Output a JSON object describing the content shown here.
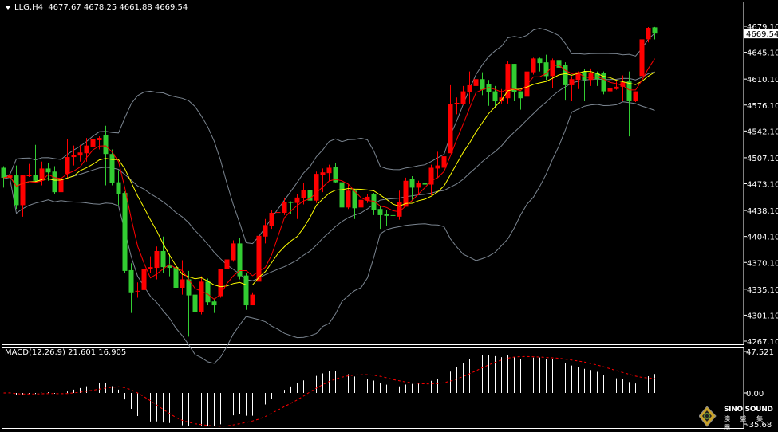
{
  "header": {
    "symbol": "LLG,H4",
    "ohlc": "4677.67 4678.25 4661.88 4669.54"
  },
  "macd": {
    "label": "MACD(12,26,9) 21.601 16.905",
    "ticks": [
      "47.521",
      "0.00",
      "-35.68"
    ],
    "tick_values": [
      47.521,
      0,
      -35.68
    ],
    "params": [
      12,
      26,
      9
    ]
  },
  "logo": {
    "text": "SINO SOUND",
    "cn": "澳 盛 集 團"
  },
  "colors": {
    "up": "#ff0000",
    "down": "#32cd32",
    "ma_fast": "#ff0000",
    "ma_slow": "#ffff00",
    "bands": "#7b8590",
    "macd_hist": "#ffffff",
    "macd_signal": "#ff0000",
    "background": "#000000"
  },
  "chart_data": {
    "type": "candlestick",
    "symbol": "LLG",
    "timeframe": "H4",
    "current_price": "4669.54",
    "ylim": [
      4263,
      4712
    ],
    "price_ticks": [
      "4679.10",
      "4645.10",
      "4610.10",
      "4576.10",
      "4542.10",
      "4507.10",
      "4473.10",
      "4438.10",
      "4404.10",
      "4370.10",
      "4335.10",
      "4301.10",
      "4267.10"
    ],
    "indicators": [
      "SMA 5",
      "SMA 10",
      "Bollinger Bands 20,2",
      "MACD 12,26,9"
    ],
    "candles": [
      [
        4494,
        4496,
        4468,
        4481
      ],
      [
        4481,
        4492,
        4477,
        4484
      ],
      [
        4484,
        4497,
        4440,
        4445
      ],
      [
        4445,
        4484,
        4430,
        4484
      ],
      [
        4483,
        4499,
        4482,
        4485
      ],
      [
        4485,
        4524,
        4474,
        4477
      ],
      [
        4477,
        4502,
        4471,
        4493
      ],
      [
        4493,
        4500,
        4477,
        4488
      ],
      [
        4489,
        4496,
        4459,
        4462
      ],
      [
        4462,
        4484,
        4446,
        4480
      ],
      [
        4486,
        4531,
        4481,
        4508
      ],
      [
        4508,
        4523,
        4497,
        4511
      ],
      [
        4510,
        4524,
        4502,
        4514
      ],
      [
        4513,
        4533,
        4502,
        4523
      ],
      [
        4521,
        4550,
        4512,
        4531
      ],
      [
        4530,
        4535,
        4518,
        4533
      ],
      [
        4537,
        4549,
        4471,
        4512
      ],
      [
        4512,
        4518,
        4471,
        4474
      ],
      [
        4475,
        4491,
        4445,
        4460
      ],
      [
        4461,
        4463,
        4356,
        4359
      ],
      [
        4360,
        4369,
        4304,
        4331
      ],
      [
        4332,
        4344,
        4324,
        4333
      ],
      [
        4334,
        4364,
        4322,
        4362
      ],
      [
        4362,
        4378,
        4356,
        4364
      ],
      [
        4363,
        4391,
        4348,
        4385
      ],
      [
        4385,
        4404,
        4356,
        4364
      ],
      [
        4366,
        4381,
        4352,
        4363
      ],
      [
        4364,
        4366,
        4333,
        4337
      ],
      [
        4337,
        4373,
        4328,
        4348
      ],
      [
        4348,
        4359,
        4273,
        4327
      ],
      [
        4328,
        4336,
        4302,
        4305
      ],
      [
        4305,
        4352,
        4302,
        4345
      ],
      [
        4345,
        4349,
        4314,
        4318
      ],
      [
        4319,
        4323,
        4304,
        4314
      ],
      [
        4326,
        4362,
        4324,
        4362
      ],
      [
        4362,
        4380,
        4359,
        4374
      ],
      [
        4373,
        4399,
        4371,
        4395
      ],
      [
        4395,
        4402,
        4348,
        4352
      ],
      [
        4353,
        4356,
        4308,
        4314
      ],
      [
        4314,
        4331,
        4314,
        4328
      ],
      [
        4345,
        4419,
        4342,
        4405
      ],
      [
        4404,
        4427,
        4395,
        4419
      ],
      [
        4418,
        4439,
        4414,
        4435
      ],
      [
        4435,
        4448,
        4395,
        4436
      ],
      [
        4435,
        4455,
        4432,
        4449
      ],
      [
        4449,
        4450,
        4434,
        4448
      ],
      [
        4448,
        4460,
        4427,
        4455
      ],
      [
        4454,
        4474,
        4446,
        4465
      ],
      [
        4465,
        4476,
        4441,
        4451
      ],
      [
        4451,
        4489,
        4448,
        4486
      ],
      [
        4485,
        4493,
        4462,
        4488
      ],
      [
        4487,
        4498,
        4477,
        4494
      ],
      [
        4495,
        4500,
        4474,
        4475
      ],
      [
        4475,
        4480,
        4442,
        4442
      ],
      [
        4442,
        4472,
        4440,
        4464
      ],
      [
        4464,
        4466,
        4427,
        4441
      ],
      [
        4442,
        4466,
        4423,
        4452
      ],
      [
        4451,
        4460,
        4448,
        4456
      ],
      [
        4459,
        4461,
        4432,
        4439
      ],
      [
        4440,
        4444,
        4414,
        4432
      ],
      [
        4433,
        4439,
        4418,
        4431
      ],
      [
        4432,
        4437,
        4407,
        4431
      ],
      [
        4430,
        4464,
        4426,
        4449
      ],
      [
        4443,
        4481,
        4443,
        4477
      ],
      [
        4479,
        4483,
        4452,
        4468
      ],
      [
        4468,
        4477,
        4458,
        4474
      ],
      [
        4474,
        4478,
        4461,
        4472
      ],
      [
        4472,
        4498,
        4458,
        4494
      ],
      [
        4493,
        4515,
        4481,
        4497
      ],
      [
        4494,
        4517,
        4481,
        4509
      ],
      [
        4513,
        4602,
        4513,
        4577
      ],
      [
        4577,
        4586,
        4564,
        4579
      ],
      [
        4577,
        4601,
        4576,
        4594
      ],
      [
        4593,
        4620,
        4578,
        4602
      ],
      [
        4601,
        4630,
        4601,
        4610
      ],
      [
        4610,
        4619,
        4589,
        4596
      ],
      [
        4604,
        4609,
        4575,
        4593
      ],
      [
        4594,
        4601,
        4573,
        4581
      ],
      [
        4581,
        4597,
        4578,
        4586
      ],
      [
        4585,
        4634,
        4578,
        4630
      ],
      [
        4630,
        4630,
        4581,
        4593
      ],
      [
        4594,
        4594,
        4570,
        4585
      ],
      [
        4587,
        4623,
        4586,
        4620
      ],
      [
        4619,
        4638,
        4616,
        4637
      ],
      [
        4637,
        4638,
        4620,
        4631
      ],
      [
        4632,
        4642,
        4609,
        4614
      ],
      [
        4614,
        4637,
        4598,
        4635
      ],
      [
        4635,
        4643,
        4620,
        4625
      ],
      [
        4629,
        4632,
        4582,
        4602
      ],
      [
        4602,
        4614,
        4581,
        4610
      ],
      [
        4609,
        4620,
        4597,
        4619
      ],
      [
        4620,
        4623,
        4581,
        4609
      ],
      [
        4609,
        4624,
        4601,
        4618
      ],
      [
        4618,
        4620,
        4601,
        4610
      ],
      [
        4618,
        4620,
        4590,
        4594
      ],
      [
        4594,
        4615,
        4591,
        4598
      ],
      [
        4597,
        4607,
        4596,
        4600
      ],
      [
        4600,
        4615,
        4581,
        4606
      ],
      [
        4607,
        4620,
        4535,
        4581
      ],
      [
        4581,
        4594,
        4580,
        4594
      ],
      [
        4614,
        4690,
        4612,
        4662
      ],
      [
        4662,
        4678,
        4658,
        4677
      ],
      [
        4677.67,
        4678.25,
        4661.88,
        4669.54
      ]
    ]
  }
}
